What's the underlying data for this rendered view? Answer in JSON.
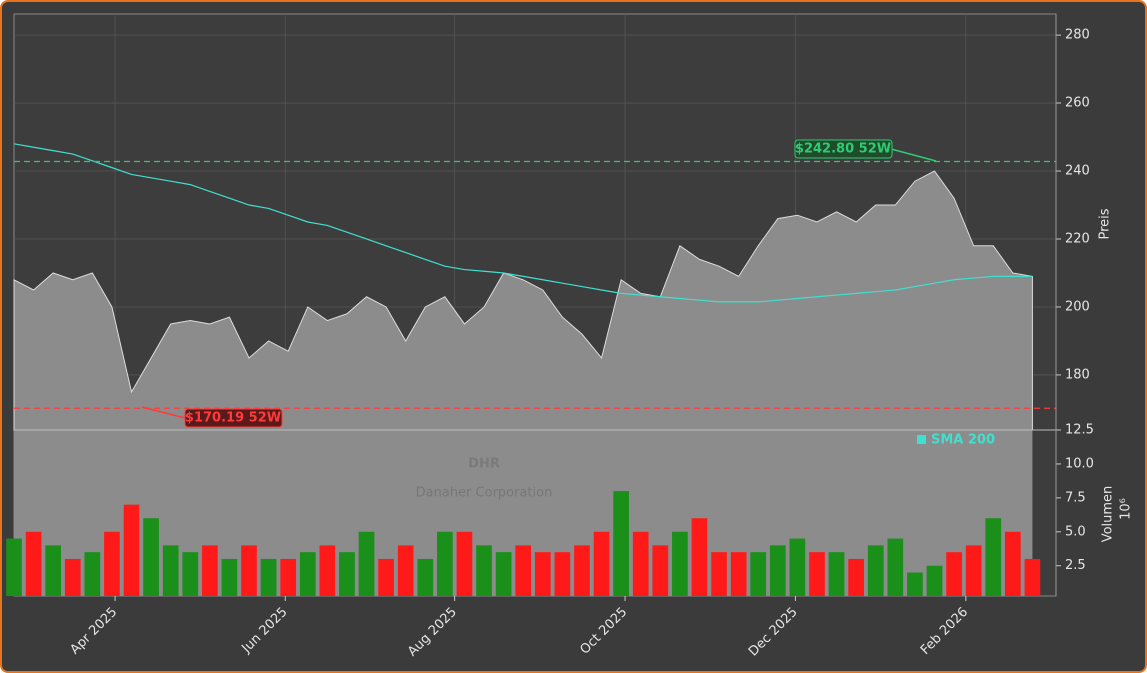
{
  "chart_data": [
    {
      "type": "area",
      "title": "DHR",
      "subtitle": "Danaher Corporation",
      "ylabel": "Preis",
      "x": [
        0,
        1,
        2,
        3,
        4,
        5,
        6,
        7,
        8,
        9,
        10,
        11,
        12,
        13,
        14,
        15,
        16,
        17,
        18,
        19,
        20,
        21,
        22,
        23,
        24,
        25,
        26,
        27,
        28,
        29,
        30,
        31,
        32,
        33,
        34,
        35,
        36,
        37,
        38,
        39,
        40,
        41,
        42,
        43,
        44,
        45,
        46,
        47,
        48,
        49,
        50,
        51,
        52
      ],
      "values": [
        208,
        205,
        210,
        208,
        210,
        200,
        175,
        185,
        195,
        196,
        195,
        197,
        185,
        190,
        187,
        200,
        196,
        198,
        203,
        200,
        190,
        200,
        203,
        195,
        200,
        210,
        208,
        205,
        197,
        192,
        185,
        208,
        204,
        203,
        218,
        214,
        212,
        209,
        218,
        226,
        227,
        225,
        228,
        225,
        230,
        230,
        237,
        240,
        232,
        218,
        218,
        210,
        209
      ],
      "color": "#8c8c8c",
      "series": [
        {
          "name": "SMA 200",
          "color": "#40e0d0",
          "values": [
            248,
            247,
            246,
            245,
            243,
            241,
            239,
            238,
            237,
            236,
            234,
            232,
            230,
            229,
            227,
            225,
            224,
            222,
            220,
            218,
            216,
            214,
            212,
            211,
            210.5,
            210,
            209,
            208,
            207,
            206,
            205,
            204,
            203.5,
            203,
            202.5,
            202,
            201.5,
            201.5,
            201.5,
            202,
            202.5,
            203,
            203.5,
            204,
            204.5,
            205,
            206,
            207,
            208,
            208.5,
            209,
            209,
            209
          ]
        }
      ],
      "xlim": [
        0,
        53
      ],
      "ylim": [
        163.8,
        286.2
      ],
      "yticks": [
        180,
        200,
        220,
        240,
        260,
        280
      ],
      "grid": true,
      "legend": "lower right",
      "annotations": [
        {
          "text": "$242.80 52W",
          "value": 242.8,
          "color": "#2ecc71"
        },
        {
          "text": "$170.19 52W",
          "value": 170.19,
          "color": "#ff3b3b"
        }
      ]
    },
    {
      "type": "bar",
      "ylabel": "Volumen",
      "ylabel_unit": "10⁶",
      "x": [
        0,
        1,
        2,
        3,
        4,
        5,
        6,
        7,
        8,
        9,
        10,
        11,
        12,
        13,
        14,
        15,
        16,
        17,
        18,
        19,
        20,
        21,
        22,
        23,
        24,
        25,
        26,
        27,
        28,
        29,
        30,
        31,
        32,
        33,
        34,
        35,
        36,
        37,
        38,
        39,
        40,
        41,
        42,
        43,
        44,
        45,
        46,
        47,
        48,
        49,
        50,
        51,
        52
      ],
      "values": [
        4.5,
        5,
        4,
        3,
        3.5,
        5,
        7,
        6,
        4,
        3.5,
        4,
        3,
        4,
        3,
        3,
        3.5,
        4,
        3.5,
        5,
        3,
        4,
        3,
        5,
        5,
        4,
        3.5,
        4,
        3.5,
        3.5,
        4,
        5,
        8,
        5,
        4,
        5,
        6,
        3.5,
        3.5,
        3.5,
        4,
        4.5,
        3.5,
        3.5,
        3,
        4,
        4.5,
        2,
        2.5,
        3.5,
        4,
        6,
        5,
        3
      ],
      "colors": [
        "#1a8f1a",
        "#ff1a1a",
        "#1a8f1a",
        "#ff1a1a",
        "#1a8f1a",
        "#ff1a1a",
        "#ff1a1a",
        "#1a8f1a",
        "#1a8f1a",
        "#1a8f1a",
        "#ff1a1a",
        "#1a8f1a",
        "#ff1a1a",
        "#1a8f1a",
        "#ff1a1a",
        "#1a8f1a",
        "#ff1a1a",
        "#1a8f1a",
        "#1a8f1a",
        "#ff1a1a",
        "#ff1a1a",
        "#1a8f1a",
        "#1a8f1a",
        "#ff1a1a",
        "#1a8f1a",
        "#1a8f1a",
        "#ff1a1a",
        "#ff1a1a",
        "#ff1a1a",
        "#ff1a1a",
        "#ff1a1a",
        "#1a8f1a",
        "#ff1a1a",
        "#ff1a1a",
        "#1a8f1a",
        "#ff1a1a",
        "#ff1a1a",
        "#ff1a1a",
        "#1a8f1a",
        "#1a8f1a",
        "#1a8f1a",
        "#ff1a1a",
        "#1a8f1a",
        "#ff1a1a",
        "#1a8f1a",
        "#1a8f1a",
        "#1a8f1a",
        "#1a8f1a",
        "#ff1a1a",
        "#ff1a1a",
        "#1a8f1a",
        "#ff1a1a",
        "#ff1a1a"
      ],
      "xlim": [
        0,
        53
      ],
      "ylim": [
        0.27,
        12.5
      ],
      "yticks": [
        {
          "value": 2.5,
          "label": "2.5"
        },
        {
          "value": 5,
          "label": "5.0"
        },
        {
          "value": 7.5,
          "label": "7.5"
        },
        {
          "value": 10,
          "label": "10.0"
        },
        {
          "value": 12.5,
          "label": "12.5"
        }
      ],
      "xticks": [
        {
          "value": 5.16,
          "label": "Apr 2025"
        },
        {
          "value": 13.85,
          "label": "Jun 2025"
        },
        {
          "value": 22.5,
          "label": "Aug 2025"
        },
        {
          "value": 31.2,
          "label": "Oct 2025"
        },
        {
          "value": 39.9,
          "label": "Dec 2025"
        },
        {
          "value": 48.6,
          "label": "Feb 2026"
        }
      ]
    }
  ]
}
